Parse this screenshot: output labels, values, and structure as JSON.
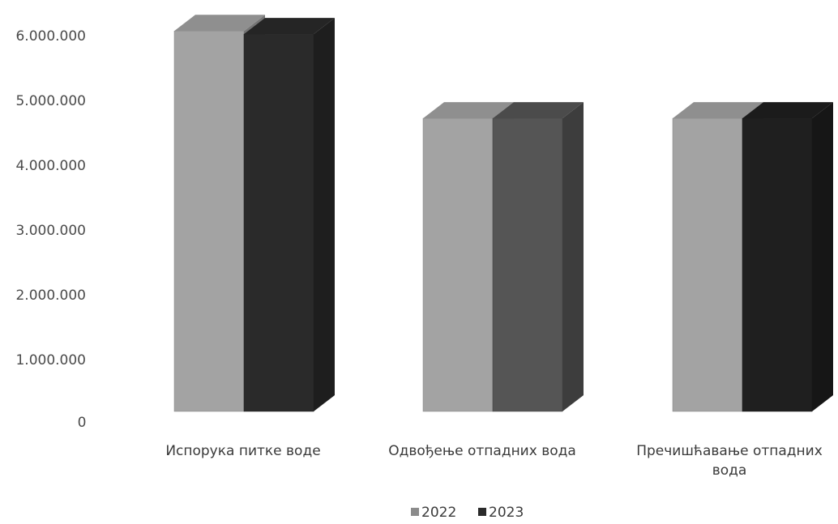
{
  "chart_data": {
    "type": "bar",
    "subtype": "3d-clustered-column",
    "categories": [
      [
        "Испорука питке воде"
      ],
      [
        "Одвођење отпадних вода"
      ],
      [
        "Пречишћавање отпадних",
        "вода"
      ]
    ],
    "series": [
      {
        "name": "2022",
        "values": [
          6100000,
          4700000,
          4700000
        ],
        "color": "#a3a3a3"
      },
      {
        "name": "2023",
        "values": [
          6050000,
          4700000,
          4700000
        ],
        "bar_colors": [
          "#2a2a2a",
          "#555555",
          "#1f1f1f"
        ],
        "color": "#2a2a2a"
      }
    ],
    "y_ticks": [
      "0",
      "1.000.000",
      "2.000.000",
      "3.000.000",
      "4.000.000",
      "5.000.000",
      "6.000.000"
    ],
    "ylim": [
      0,
      6000000
    ],
    "title": "",
    "xlabel": "",
    "ylabel": "",
    "grid": false,
    "legend_position": "bottom"
  }
}
